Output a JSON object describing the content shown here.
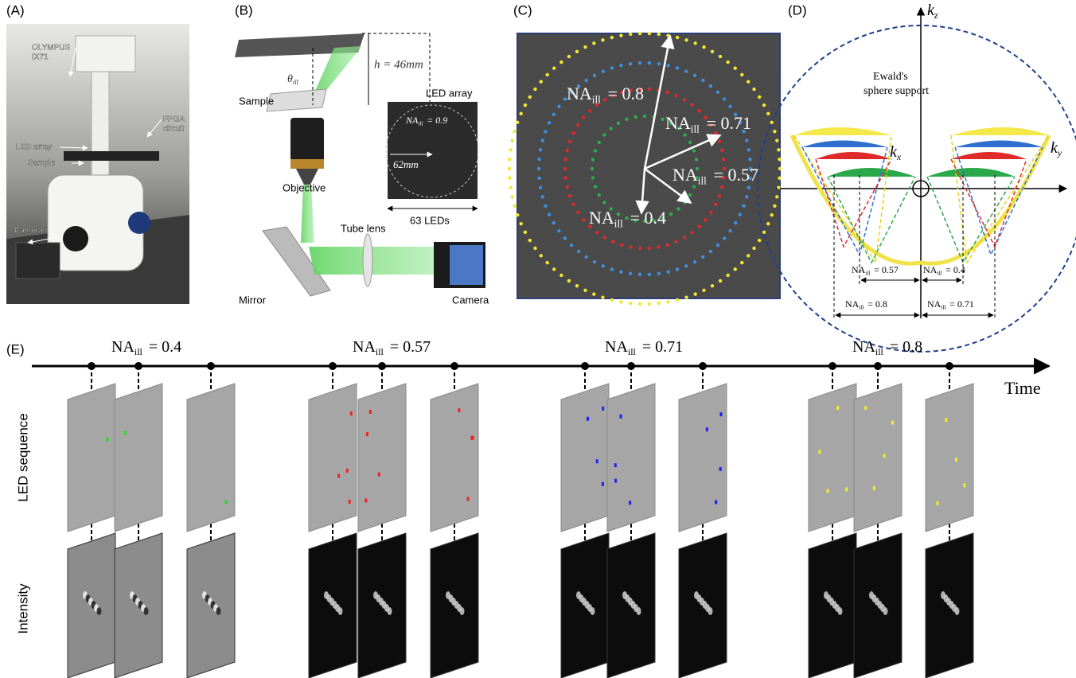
{
  "panel_labels": [
    "(A)",
    "(B)",
    "(C)",
    "(D)",
    "(E)"
  ],
  "panel_a": {
    "labels": [
      [
        "OLYMPUS",
        "IX71"
      ],
      [
        "FPGA",
        "circuit"
      ],
      [
        "LED array"
      ],
      [
        "Sample"
      ],
      [
        "Camera"
      ]
    ]
  },
  "panel_b": {
    "sample": "Sample",
    "theta": {
      "base": "θ",
      "sub": "ill"
    },
    "height": "h = 46mm",
    "led_array": "LED array",
    "na": {
      "base": "NA",
      "sub": "ill",
      "rest": "= 0.9"
    },
    "diameter": "62mm",
    "led_count": "63 LEDs",
    "objective": "Objective",
    "tube_lens": "Tube lens",
    "mirror": "Mirror",
    "camera": "Camera"
  },
  "panel_c": {
    "labels": [
      {
        "base": "NA",
        "sub": "ill",
        "rest": "= 0.8"
      },
      {
        "base": "NA",
        "sub": "ill",
        "rest": "= 0.71"
      },
      {
        "base": "NA",
        "sub": "ill",
        "rest": "= 0.57"
      },
      {
        "base": "NA",
        "sub": "ill",
        "rest": "= 0.4"
      }
    ]
  },
  "panel_d": {
    "axes": [
      {
        "base": "k",
        "sub": "z"
      },
      {
        "base": "k",
        "sub": "x"
      },
      {
        "base": "k",
        "sub": "y"
      }
    ],
    "ewald": [
      "Ewald's",
      "sphere support"
    ],
    "na_labels": [
      {
        "base": "NA",
        "sub": "ill",
        "rest": "= 0.57"
      },
      {
        "base": "NA",
        "sub": "ill",
        "rest": "= 0.4"
      },
      {
        "base": "NA",
        "sub": "ill",
        "rest": "= 0.8"
      },
      {
        "base": "NA",
        "sub": "ill",
        "rest": "= 0.71"
      }
    ]
  },
  "panel_e": {
    "groups": [
      {
        "base": "NA",
        "sub": "ill",
        "rest": "= 0.4"
      },
      {
        "base": "NA",
        "sub": "ill",
        "rest": "= 0.57"
      },
      {
        "base": "NA",
        "sub": "ill",
        "rest": "= 0.71"
      },
      {
        "base": "NA",
        "sub": "ill",
        "rest": "= 0.8"
      }
    ],
    "time": "Time",
    "rows": [
      "LED sequence",
      "Intensity"
    ]
  }
}
